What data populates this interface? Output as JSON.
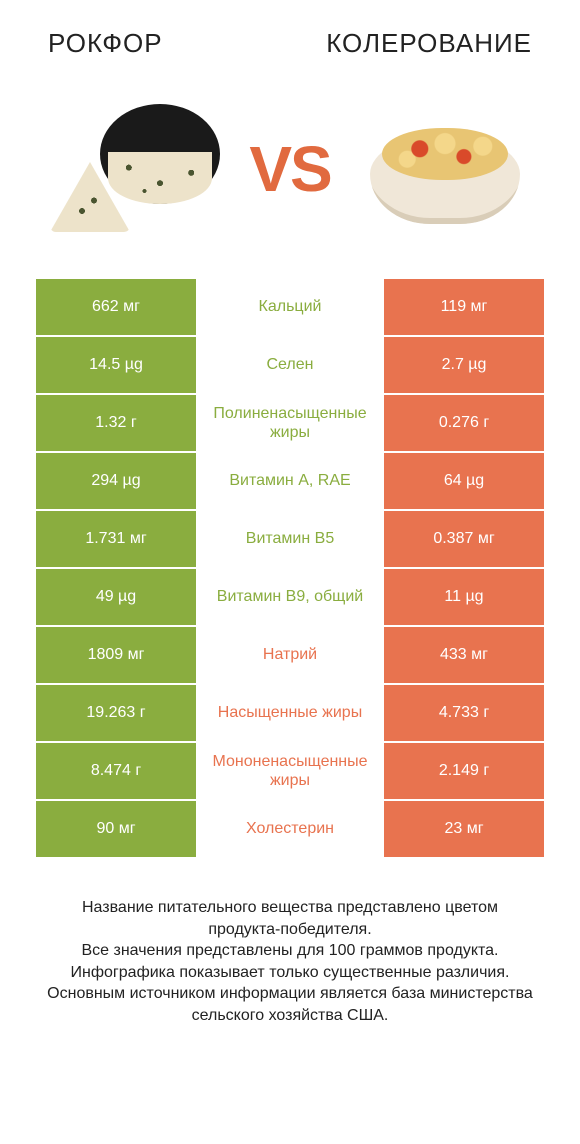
{
  "header": {
    "left_title": "РОКФОР",
    "right_title": "КОЛЕРОВАНИЕ"
  },
  "vs_label": "VS",
  "colors": {
    "green": "#8aad3f",
    "red": "#e8734f",
    "vs": "#e16a3f",
    "background": "#ffffff"
  },
  "table": {
    "rows": [
      {
        "left": "662 мг",
        "label": "Кальций",
        "label_color": "green",
        "right": "119 мг"
      },
      {
        "left": "14.5 µg",
        "label": "Селен",
        "label_color": "green",
        "right": "2.7 µg"
      },
      {
        "left": "1.32 г",
        "label": "Полиненасыщенные жиры",
        "label_color": "green",
        "right": "0.276 г"
      },
      {
        "left": "294 µg",
        "label": "Витамин A, RAE",
        "label_color": "green",
        "right": "64 µg"
      },
      {
        "left": "1.731 мг",
        "label": "Витамин B5",
        "label_color": "green",
        "right": "0.387 мг"
      },
      {
        "left": "49 µg",
        "label": "Витамин B9, общий",
        "label_color": "green",
        "right": "11 µg"
      },
      {
        "left": "1809 мг",
        "label": "Натрий",
        "label_color": "red",
        "right": "433 мг"
      },
      {
        "left": "19.263 г",
        "label": "Насыщенные жиры",
        "label_color": "red",
        "right": "4.733 г"
      },
      {
        "left": "8.474 г",
        "label": "Мононенасыщенные жиры",
        "label_color": "red",
        "right": "2.149 г"
      },
      {
        "left": "90 мг",
        "label": "Холестерин",
        "label_color": "red",
        "right": "23 мг"
      }
    ]
  },
  "footer_lines": [
    "Название питательного вещества представлено цветом продукта-победителя.",
    "Все значения представлены для 100 граммов продукта.",
    "Инфографика показывает только существенные различия.",
    "Основным источником информации является база министерства сельского хозяйства США."
  ]
}
